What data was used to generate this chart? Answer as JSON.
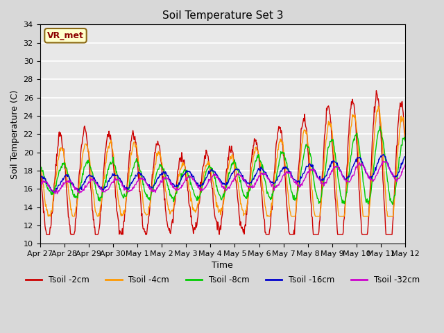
{
  "title": "Soil Temperature Set 3",
  "xlabel": "Time",
  "ylabel": "Soil Temperature (C)",
  "ylim": [
    10,
    34
  ],
  "yticks": [
    10,
    12,
    14,
    16,
    18,
    20,
    22,
    24,
    26,
    28,
    30,
    32,
    34
  ],
  "legend_label": "VR_met",
  "line_colors": {
    "2cm": "#cc0000",
    "4cm": "#ff9900",
    "8cm": "#00cc00",
    "16cm": "#0000cc",
    "32cm": "#cc00cc"
  },
  "line_labels": [
    "Tsoil -2cm",
    "Tsoil -4cm",
    "Tsoil -8cm",
    "Tsoil -16cm",
    "Tsoil -32cm"
  ],
  "x_tick_labels": [
    "Apr 27",
    "Apr 28",
    "Apr 29",
    "Apr 30",
    "May 1",
    "May 2",
    "May 3",
    "May 4",
    "May 5",
    "May 6",
    "May 7",
    "May 8",
    "May 9",
    "May 10",
    "May 11",
    "May 12"
  ],
  "num_days": 15,
  "pts_per_day": 48
}
